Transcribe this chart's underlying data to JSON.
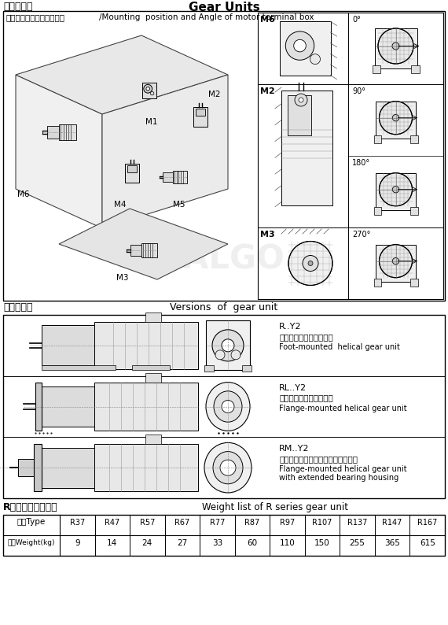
{
  "title_left": "齿轮减速机",
  "title_right": "Gear Units",
  "section1_header_bold": "安装方位及电机接线盒角度",
  "section1_header_normal": "/Mounting  position and Angle of motor terminal box",
  "section2_header_cn": "减速机型式",
  "section2_header_en": "Versions  of  gear unit",
  "section3_header_cn": "R系列减速机重量表",
  "section3_header_en": "Weight list of R series gear unit",
  "mounting_pos_labels": [
    "M6",
    "M1",
    "M2",
    "M4",
    "M5",
    "M3"
  ],
  "right_panel_rows": [
    {
      "label": "M6",
      "angle": "0°"
    },
    {
      "label": "M2",
      "angle": "90°"
    },
    {
      "label": "M2",
      "angle": "180°"
    },
    {
      "label": "M3",
      "angle": "270°"
    }
  ],
  "version_rows": [
    {
      "code": "R..Y2",
      "cn": "底脚安装斜齿轮减速电机",
      "en": "Foot-mounted  helical gear unit"
    },
    {
      "code": "RL..Y2",
      "cn": "法兰安装斜齿轮减速电机",
      "en": "Flange-mounted helical gear unit"
    },
    {
      "code": "RM..Y2",
      "cn": "加长轴承座法兰安装的斜齿轮减速机",
      "en_line1": "Flange-mounted helical gear unit",
      "en_line2": "with extended bearing housing"
    }
  ],
  "weight_types": [
    "R37",
    "R47",
    "R57",
    "R67",
    "R77",
    "R87",
    "R97",
    "R107",
    "R137",
    "R147",
    "R167"
  ],
  "weight_values": [
    "9",
    "14",
    "24",
    "27",
    "33",
    "60",
    "110",
    "150",
    "255",
    "365",
    "615"
  ],
  "weight_col1_type": "型号Type",
  "weight_col1_weight": "重量Weight(kg)",
  "bg_color": "#ffffff"
}
